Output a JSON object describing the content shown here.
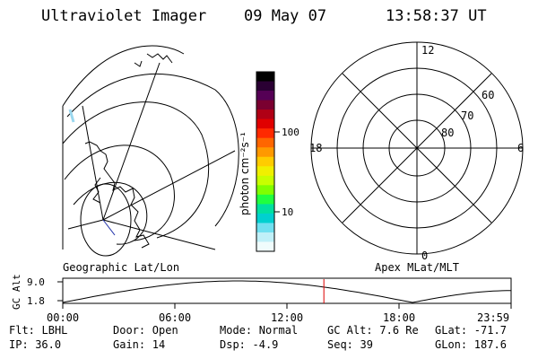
{
  "header": {
    "instrument": "Ultraviolet Imager",
    "date": "09 May 07",
    "time": "13:58:37 UT"
  },
  "geo_panel": {
    "label": "Geographic Lat/Lon"
  },
  "colorbar": {
    "unit_label": "photon cm⁻²s⁻¹",
    "ticks": [
      "100",
      "10"
    ],
    "colors": [
      "#000000",
      "#2a0033",
      "#550055",
      "#7a0030",
      "#b00015",
      "#e00000",
      "#ff2a00",
      "#ff6600",
      "#ff9900",
      "#ffcc00",
      "#f0f000",
      "#c8ff00",
      "#80ff00",
      "#20ff40",
      "#00e0a0",
      "#00d0d0",
      "#70e0f0",
      "#c0f0f8",
      "#f0fcfc"
    ]
  },
  "polar_panel": {
    "label": "Apex MLat/MLT",
    "mlt_labels": [
      "12",
      "6",
      "0",
      "18"
    ],
    "mlat_labels": [
      "60",
      "70",
      "80"
    ]
  },
  "altitude_plot": {
    "ylabel": "GC Alt",
    "y_ticks": [
      "9.0",
      "1.8"
    ],
    "x_ticks": [
      "00:00",
      "06:00",
      "12:00",
      "18:00",
      "23:59"
    ],
    "marker_time": "13:58",
    "marker_color": "#dd0000"
  },
  "status": {
    "row1": [
      {
        "label": "Flt:",
        "value": "LBHL"
      },
      {
        "label": "Door:",
        "value": "Open"
      },
      {
        "label": "Mode:",
        "value": "Normal"
      },
      {
        "label": "GC Alt:",
        "value": "7.6 Re"
      },
      {
        "label": "GLat:",
        "value": "-71.7"
      }
    ],
    "row2": [
      {
        "label": "IP:",
        "value": "36.0"
      },
      {
        "label": "Gain:",
        "value": "14"
      },
      {
        "label": "Dsp:",
        "value": "-4.9"
      },
      {
        "label": "Seq:",
        "value": "39"
      },
      {
        "label": "GLon:",
        "value": "187.6"
      }
    ]
  }
}
